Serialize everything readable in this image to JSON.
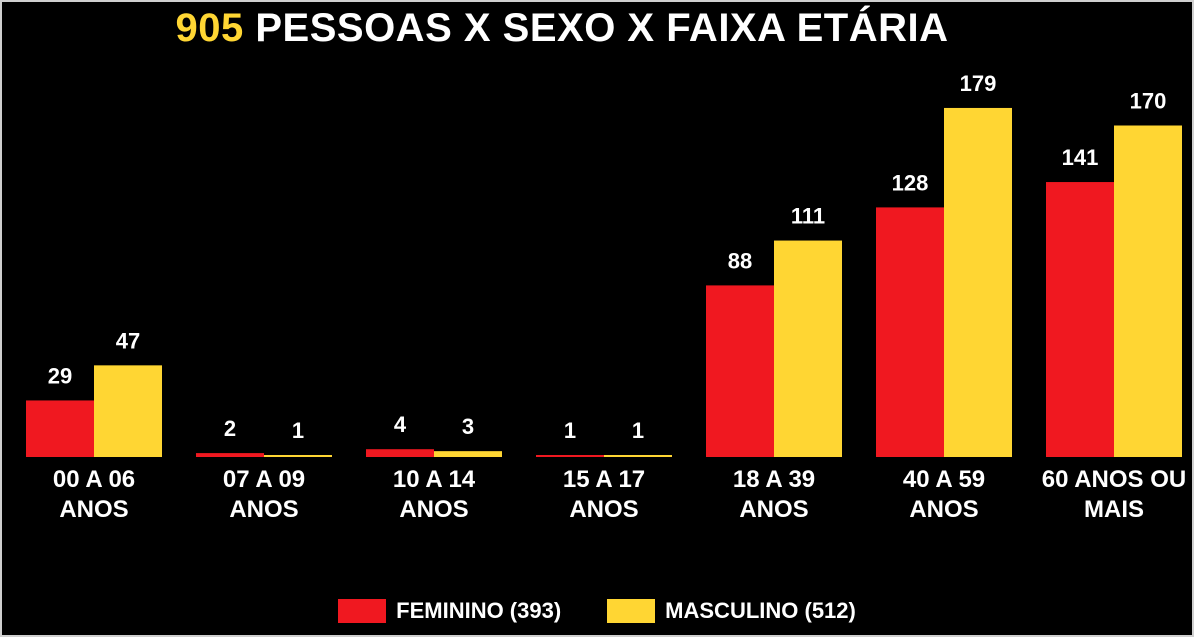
{
  "chart_data": {
    "type": "bar",
    "title_highlight": "905",
    "title_rest": "PESSOAS X SEXO X FAIXA ETÁRIA",
    "categories": [
      [
        "00 A 06",
        "ANOS"
      ],
      [
        "07 A 09",
        "ANOS"
      ],
      [
        "10 A 14",
        "ANOS"
      ],
      [
        "15 A 17",
        "ANOS"
      ],
      [
        "18 A 39",
        "ANOS"
      ],
      [
        "40 A 59",
        "ANOS"
      ],
      [
        "60 ANOS OU",
        "MAIS"
      ]
    ],
    "series": [
      {
        "name": "FEMININO (393)",
        "color": "#f01820",
        "values": [
          29,
          2,
          4,
          1,
          88,
          128,
          141
        ]
      },
      {
        "name": "MASCULINO (512)",
        "color": "#ffd633",
        "values": [
          47,
          1,
          3,
          1,
          111,
          179,
          170
        ]
      }
    ],
    "ylim": [
      0,
      200
    ],
    "grid": false,
    "legend_position": "bottom"
  }
}
